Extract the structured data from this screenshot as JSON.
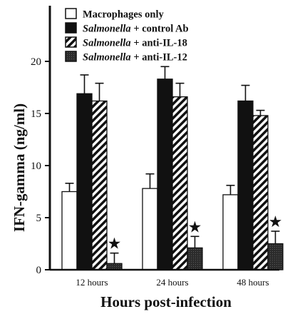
{
  "chart_data": {
    "type": "bar",
    "title": "",
    "xlabel": "Hours post-infection",
    "ylabel": "IFN-gamma (ng/ml)",
    "ylim": [
      0,
      23
    ],
    "yticks": [
      "0",
      "5",
      "10",
      "15",
      "20"
    ],
    "categories": [
      "12 hours",
      "24 hours",
      "48 hours"
    ],
    "legend_position": "top",
    "series": [
      {
        "name": "Macrophages only",
        "name_italic": "",
        "name_rest": "Macrophages only",
        "fill": "white",
        "values": [
          7.5,
          7.8,
          7.2
        ],
        "errors": [
          0.8,
          1.4,
          0.9
        ]
      },
      {
        "name": "Salmonella + control Ab",
        "name_italic": "Salmonella",
        "name_rest": " + control Ab",
        "fill": "black",
        "values": [
          16.9,
          18.3,
          16.2
        ],
        "errors": [
          1.8,
          1.2,
          1.5
        ]
      },
      {
        "name": "Salmonella + anti-IL-18",
        "name_italic": "Salmonella",
        "name_rest": " + anti-IL-18",
        "fill": "hatch",
        "values": [
          16.2,
          16.6,
          14.8
        ],
        "errors": [
          1.7,
          1.3,
          0.5
        ]
      },
      {
        "name": "Salmonella + anti-IL-12",
        "name_italic": "Salmonella",
        "name_rest": " + anti-IL-12",
        "fill": "dark-stipple",
        "values": [
          0.6,
          2.1,
          2.5
        ],
        "errors": [
          1.0,
          1.1,
          1.2
        ]
      }
    ],
    "annotations": [
      {
        "series": 3,
        "category": 0,
        "symbol": "★"
      },
      {
        "series": 3,
        "category": 1,
        "symbol": "★"
      },
      {
        "series": 3,
        "category": 2,
        "symbol": "★"
      }
    ],
    "colors": {
      "black": "#111111",
      "dark": "#2b2b2b",
      "white": "#ffffff"
    }
  }
}
